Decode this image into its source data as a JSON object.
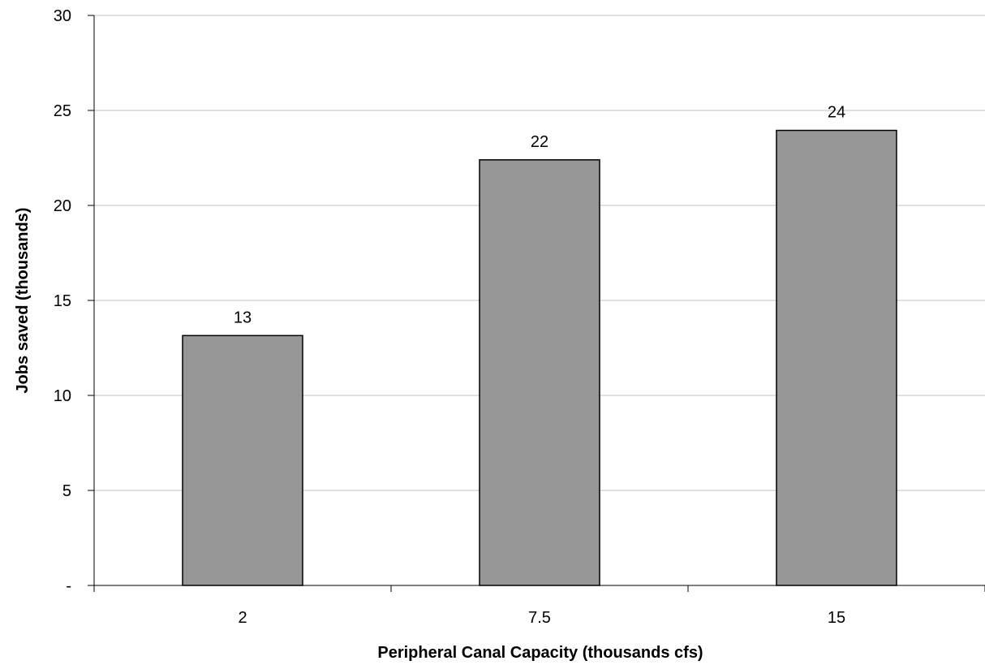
{
  "chart_data": {
    "type": "bar",
    "categories": [
      "2",
      "7.5",
      "15"
    ],
    "values": [
      13.15,
      22.4,
      23.95
    ],
    "data_labels": [
      "13",
      "22",
      "24"
    ],
    "title": "",
    "xlabel": "Peripheral Canal Capacity (thousands cfs)",
    "ylabel": "Jobs saved (thousands)",
    "ylim": [
      0,
      30
    ],
    "yticks": [
      0,
      5,
      10,
      15,
      20,
      25,
      30
    ],
    "ytick_labels": [
      "-",
      "5",
      "10",
      "15",
      "20",
      "25",
      "30"
    ],
    "grid": "horizontal",
    "legend": "none",
    "colors": {
      "bar_fill": "#969696",
      "bar_stroke": "#000000",
      "gridline": "#c0c0c0",
      "axis": "#000000"
    }
  }
}
